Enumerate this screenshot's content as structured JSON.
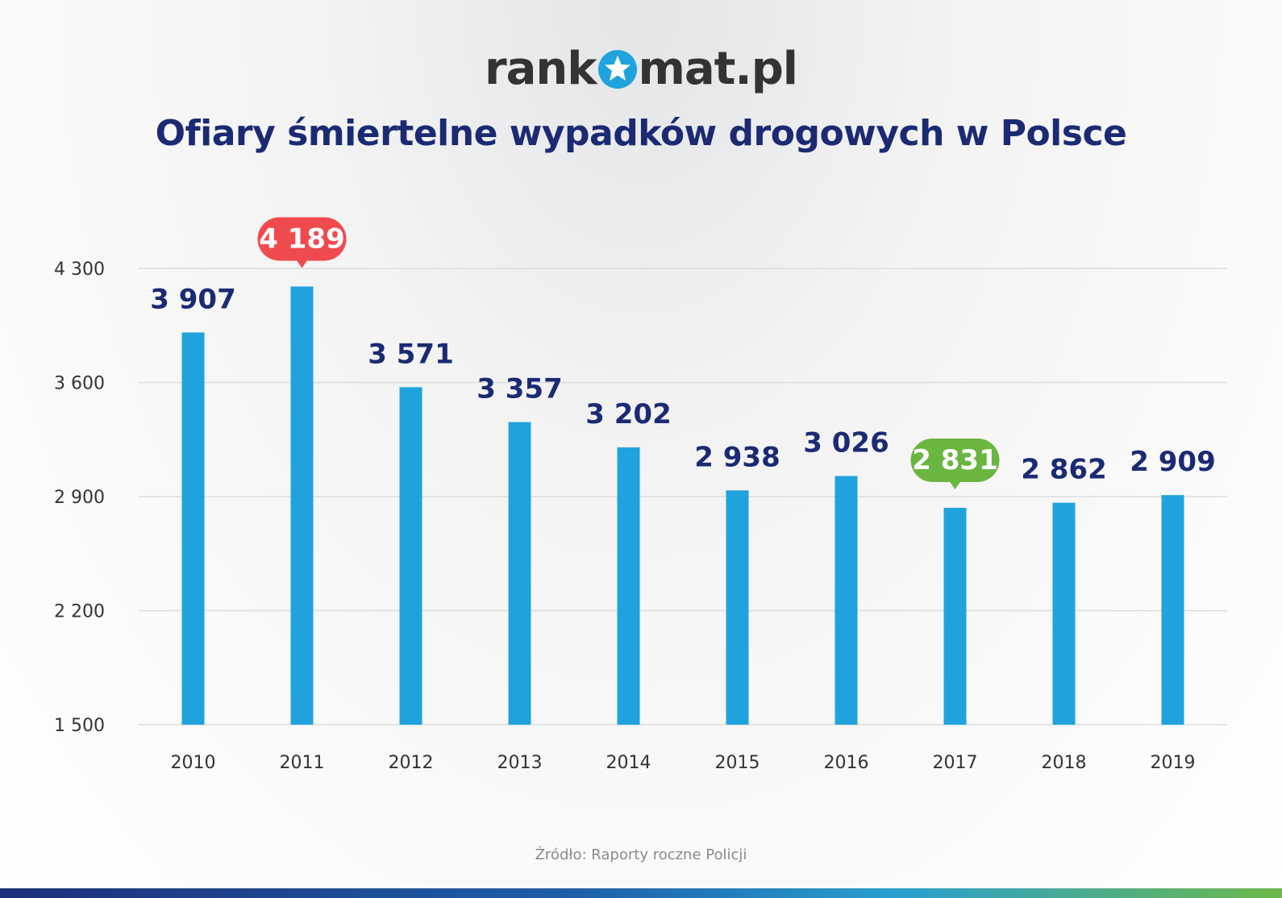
{
  "brand": {
    "logo_before": "rank",
    "logo_after": "mat.pl",
    "logo_icon": "star-in-circle-icon",
    "logo_color": "#333333",
    "logo_accent": "#20a3dc"
  },
  "source_note": "Źródło: Raporty roczne Policji",
  "colors": {
    "bar": "#20a3dc",
    "value_label": "#1b2a73",
    "max_badge": "#ef4b4f",
    "min_badge": "#6ab640",
    "grid": "#dcdcdc",
    "tick_label": "#333333"
  },
  "chart_data": {
    "type": "bar",
    "title": "Ofiary śmiertelne wypadków drogowych w Polsce",
    "xlabel": "",
    "ylabel": "",
    "categories": [
      "2010",
      "2011",
      "2012",
      "2013",
      "2014",
      "2015",
      "2016",
      "2017",
      "2018",
      "2019"
    ],
    "values": [
      3907,
      4189,
      3571,
      3357,
      3202,
      2938,
      3026,
      2831,
      2862,
      2909
    ],
    "value_labels": [
      "3 907",
      "4 189",
      "3 571",
      "3 357",
      "3 202",
      "2 938",
      "3 026",
      "2 831",
      "2 862",
      "2 909"
    ],
    "ylim": [
      1500,
      4300
    ],
    "y_ticks": [
      1500,
      2200,
      2900,
      3600,
      4300
    ],
    "y_tick_labels": [
      "1 500",
      "2 200",
      "2 900",
      "3 600",
      "4 300"
    ],
    "grid": true,
    "legend": "none",
    "highlight_max_index": 1,
    "highlight_min_index": 7
  }
}
